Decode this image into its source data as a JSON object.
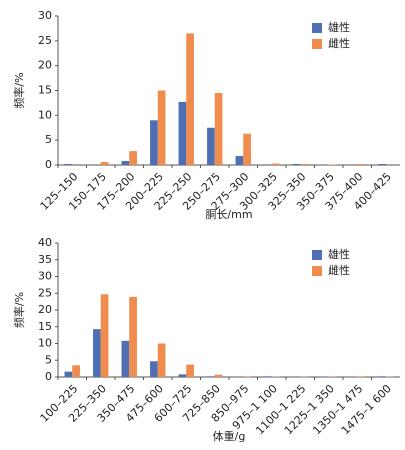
{
  "chart_data": [
    {
      "type": "bar",
      "y_label": "频率/%",
      "x_label": "胴长/mm",
      "categories": [
        "125–150",
        "150–175",
        "175–200",
        "200–225",
        "225–250",
        "250–275",
        "275–300",
        "300–325",
        "325–350",
        "350–375",
        "375–400",
        "400–425"
      ],
      "series": [
        {
          "name": "雄性",
          "color": "#4f6fb5",
          "values": [
            0.2,
            0,
            0.8,
            9,
            12.7,
            7.5,
            1.8,
            0,
            0.2,
            0,
            0,
            0.2
          ]
        },
        {
          "name": "雌性",
          "color": "#f08c4e",
          "values": [
            0,
            0.6,
            2.8,
            15,
            26.5,
            14.5,
            6.3,
            0.3,
            0.2,
            0.1,
            0.2,
            0
          ]
        }
      ],
      "ylim": [
        0,
        30
      ],
      "yticks": [
        0,
        5,
        10,
        15,
        20,
        25,
        30
      ],
      "grid": false,
      "legend": "upper right"
    },
    {
      "type": "bar",
      "y_label": "频率/%",
      "x_label": "体重/g",
      "categories": [
        "100–225",
        "225–350",
        "350–475",
        "475–600",
        "600–725",
        "725–850",
        "850–975",
        "975–1 100",
        "1100–1 225",
        "1225–1 350",
        "1350–1 475",
        "1475–1 600"
      ],
      "series": [
        {
          "name": "雄性",
          "color": "#4f6fb5",
          "values": [
            1.6,
            14.3,
            10.8,
            4.7,
            0.8,
            0.2,
            0,
            0.2,
            0,
            0.1,
            0.1,
            0.2
          ]
        },
        {
          "name": "雌性",
          "color": "#f08c4e",
          "values": [
            3.5,
            24.7,
            23.9,
            10,
            3.7,
            0.7,
            0.2,
            0.1,
            0.1,
            0.1,
            0.2,
            0.1
          ]
        }
      ],
      "ylim": [
        0,
        40
      ],
      "yticks": [
        0,
        5,
        10,
        15,
        20,
        25,
        30,
        35,
        40
      ],
      "grid": false,
      "legend": "upper right"
    }
  ]
}
